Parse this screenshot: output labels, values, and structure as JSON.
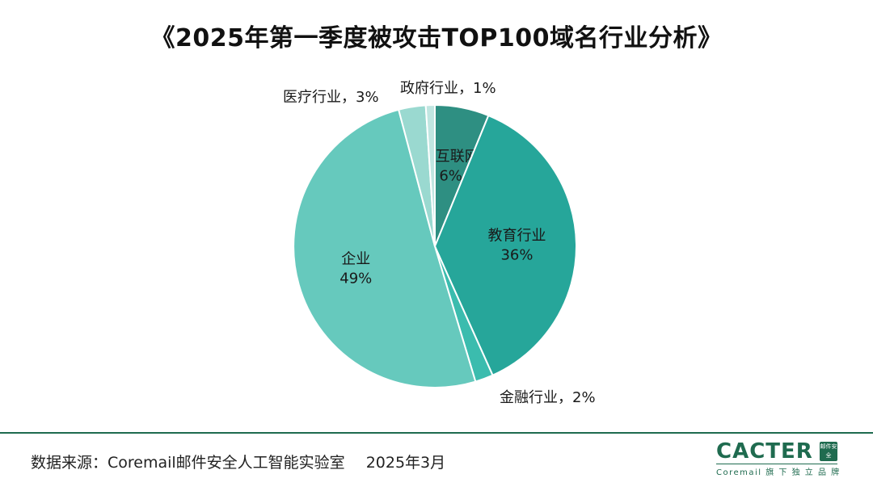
{
  "title": "《2025年第一季度被攻击TOP100域名行业分析》",
  "chart_data": {
    "type": "pie",
    "title": "《2025年第一季度被攻击TOP100域名行业分析》",
    "slices": [
      {
        "category": "IT互联网",
        "value": 6,
        "label_text": "6%",
        "color": "#2e8f82",
        "label_inside": true
      },
      {
        "category": "教育行业",
        "value": 36,
        "label_text": "36%",
        "color": "#26a69a",
        "label_inside": true
      },
      {
        "category": "金融行业",
        "value": 2,
        "label_text": "金融行业，2%",
        "color": "#3bbcae",
        "label_inside": false
      },
      {
        "category": "企业",
        "value": 49,
        "label_text": "49%",
        "color": "#66c9bd",
        "label_inside": true
      },
      {
        "category": "医疗行业",
        "value": 3,
        "label_text": "医疗行业，3%",
        "color": "#9ad9d0",
        "label_inside": false
      },
      {
        "category": "政府行业",
        "value": 1,
        "label_text": "政府行业，1%",
        "color": "#c0e6e1",
        "label_inside": false
      }
    ],
    "start_angle": "12 o'clock",
    "direction": "clockwise"
  },
  "footer": {
    "source": "数据来源：Coremail邮件安全人工智能实验室",
    "date": "2025年3月"
  },
  "logo": {
    "word": "CACTER",
    "badge": "邮件安全",
    "sub": "Coremail 旗 下 独 立 品 牌",
    "color": "#1f6b4f"
  }
}
